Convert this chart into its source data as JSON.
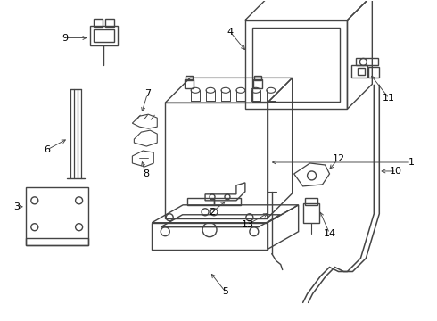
{
  "background_color": "#ffffff",
  "line_color": "#444444",
  "line_width": 1.0,
  "label_color": "#000000",
  "figsize": [
    4.9,
    3.6
  ],
  "dpi": 100
}
